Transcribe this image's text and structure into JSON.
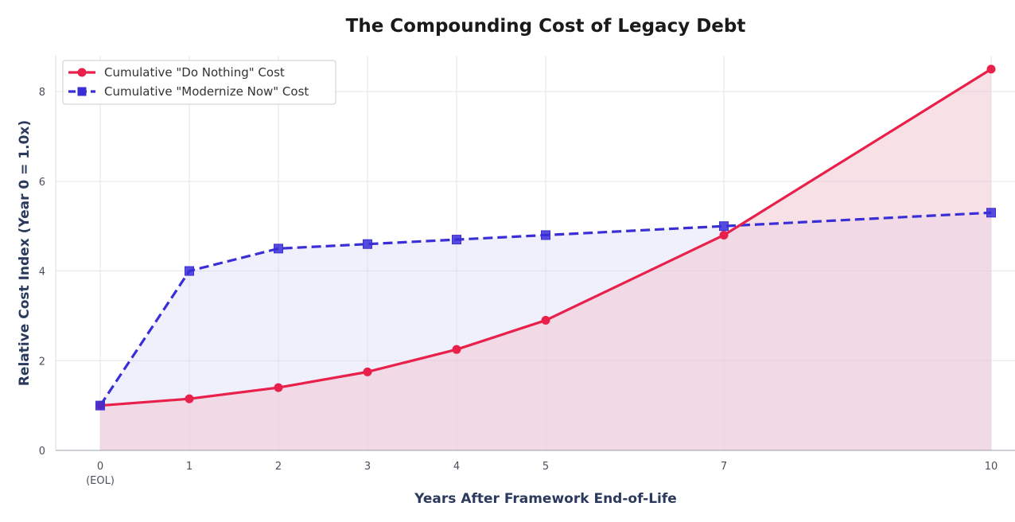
{
  "chart_data": {
    "type": "line",
    "title": "The Compounding Cost of Legacy Debt",
    "xlabel": "Years After Framework End-of-Life",
    "ylabel": "Relative Cost Index (Year 0 = 1.0x)",
    "x": [
      0,
      1,
      2,
      3,
      4,
      5,
      7,
      10
    ],
    "x_tick_labels": [
      "0",
      "1",
      "2",
      "3",
      "4",
      "5",
      "7",
      "10"
    ],
    "x_tick_sublabels": [
      "(EOL)",
      "",
      "",
      "",
      "",
      "",
      "",
      ""
    ],
    "yticks": [
      0,
      2,
      4,
      6,
      8
    ],
    "ylim": [
      0,
      8.8
    ],
    "xlim": [
      -0.5,
      10.3
    ],
    "grid": true,
    "legend_position": "top-left",
    "series": [
      {
        "name": "Cumulative \"Do Nothing\" Cost",
        "color": "#e8204a",
        "marker": "circle",
        "line_style": "solid",
        "fill": "#f3c6d3",
        "values": [
          1.0,
          1.15,
          1.4,
          1.75,
          2.25,
          2.9,
          4.8,
          8.5
        ]
      },
      {
        "name": "Cumulative \"Modernize Now\" Cost",
        "color": "#3a2ed6",
        "marker": "square",
        "line_style": "dashed",
        "fill": "#d9d8f7",
        "values": [
          1.0,
          4.0,
          4.5,
          4.6,
          4.7,
          4.8,
          5.0,
          5.3
        ]
      }
    ]
  }
}
